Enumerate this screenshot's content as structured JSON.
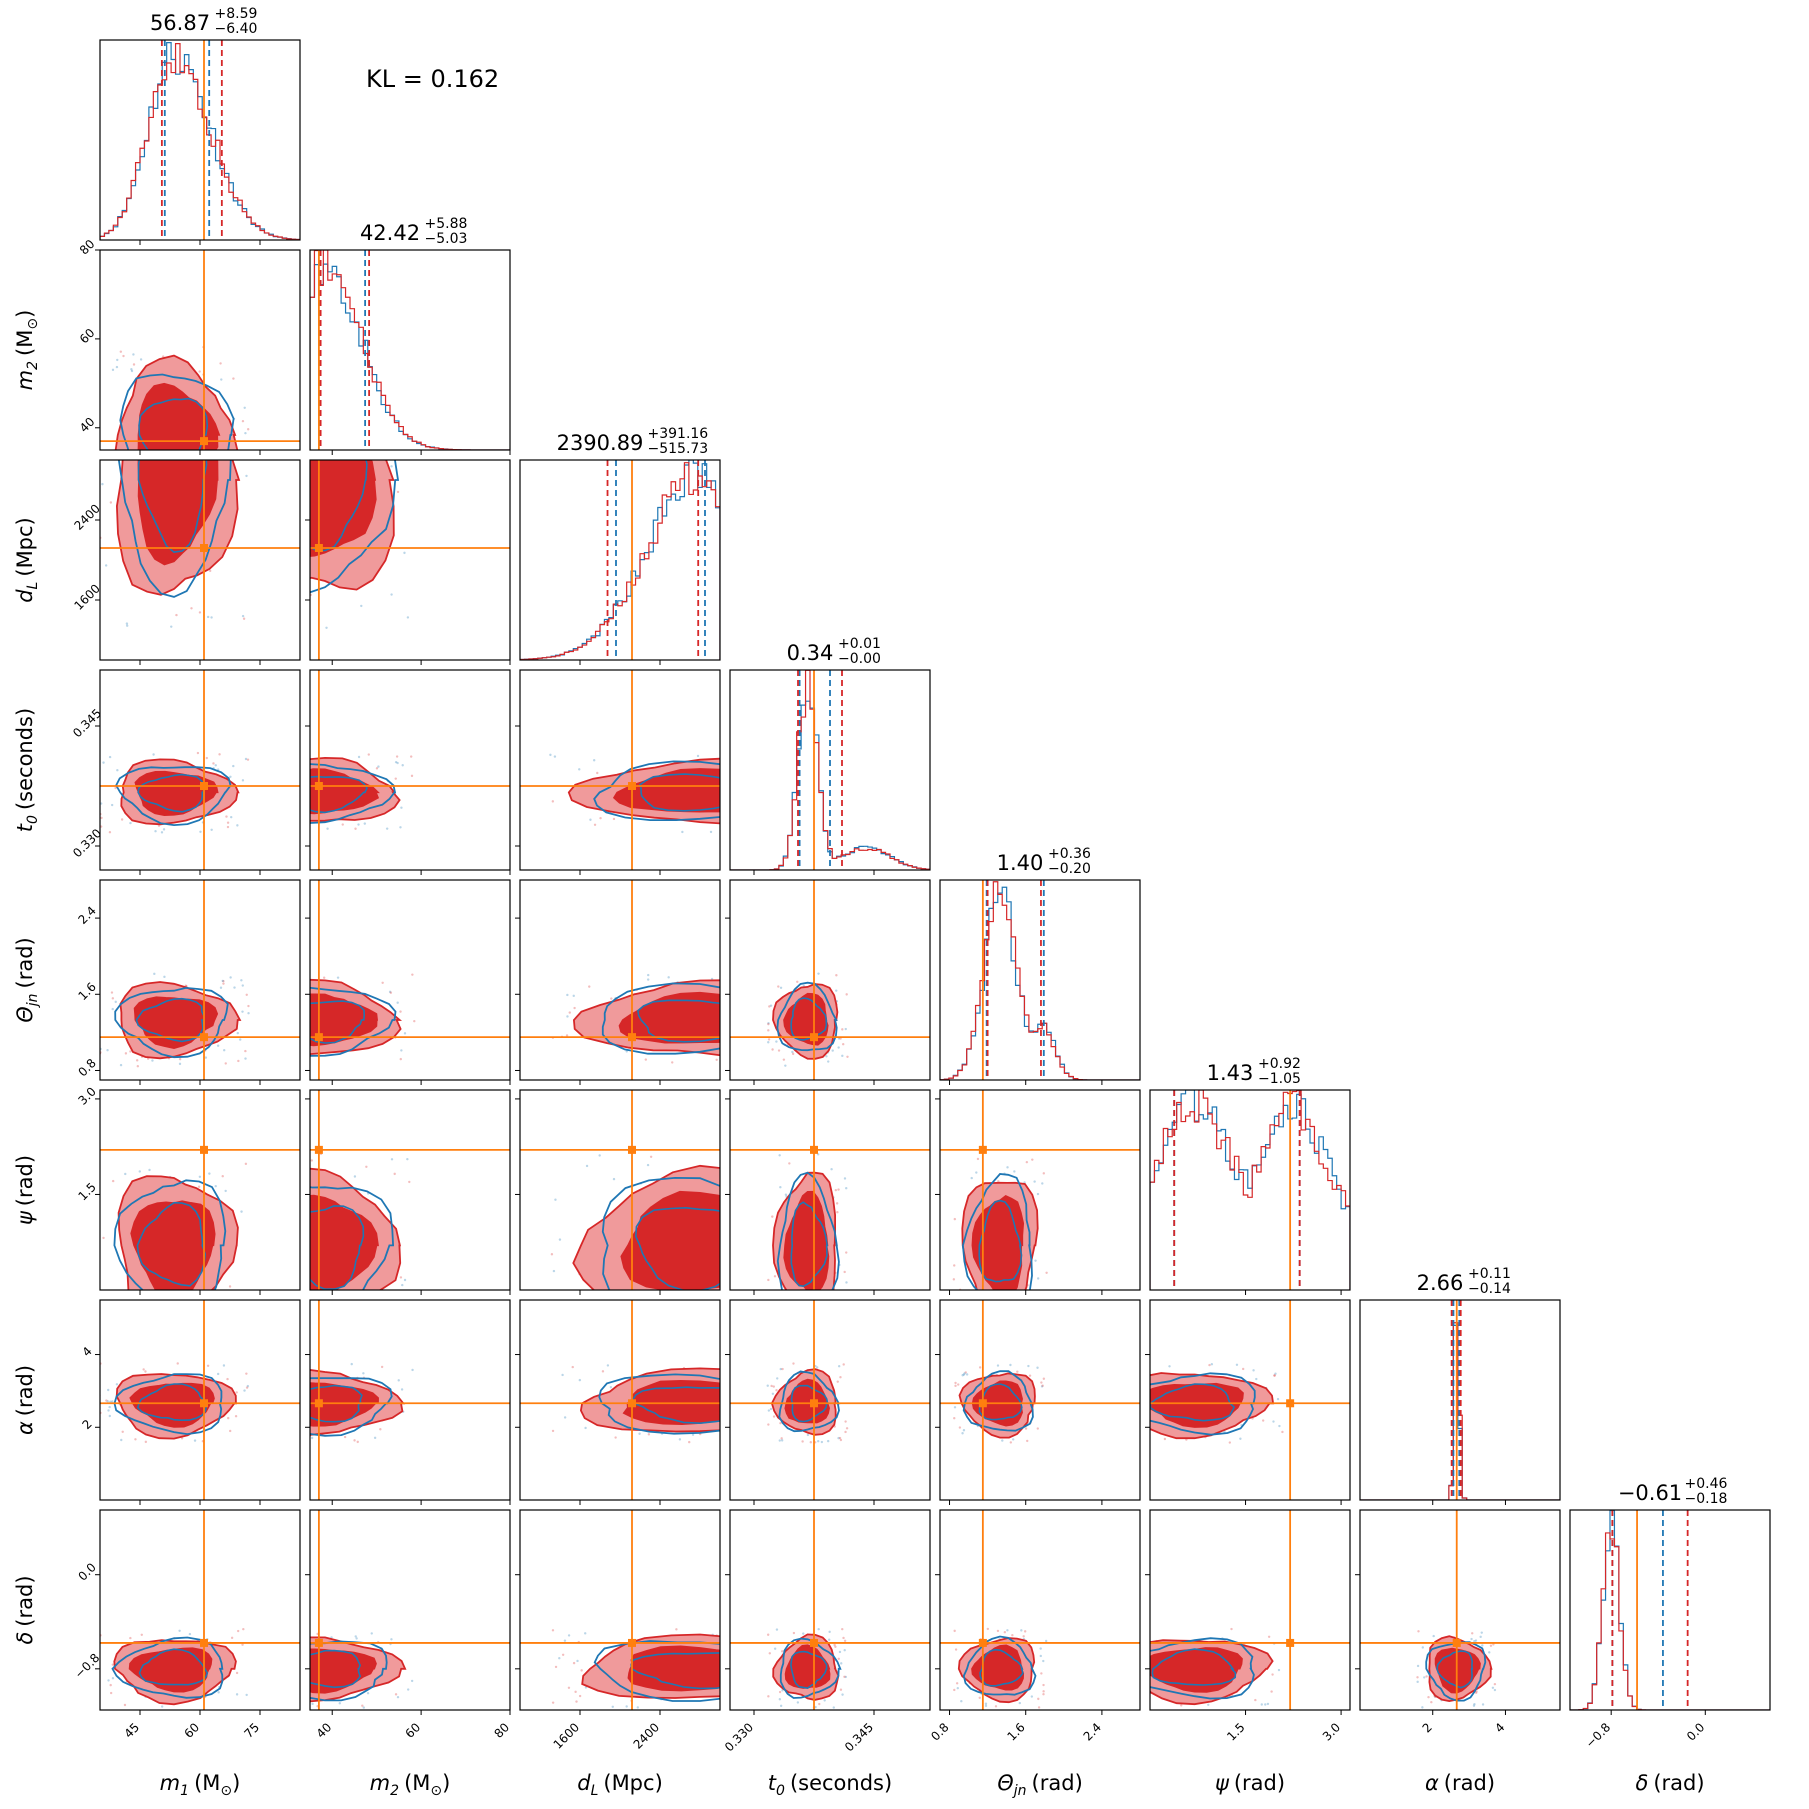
{
  "figure": {
    "kl_label": "KL = 0.162"
  },
  "colors": {
    "blue": "#1f77b4",
    "red": "#d62728",
    "truth": "#ff7f0e",
    "light_red": "#f09a9b"
  },
  "chart_data": {
    "type": "corner",
    "params": [
      {
        "base": "m",
        "sub": "1",
        "unit": "M",
        "unit_sub": "⊙",
        "range": [
          35,
          85
        ],
        "ticks": [
          45,
          60,
          75
        ],
        "tick_labels": [
          "45",
          "60",
          "75"
        ],
        "truth": 61,
        "median_red": 56.87,
        "q_red": [
          50.47,
          65.46
        ],
        "q_blue": [
          51.2,
          62.3
        ],
        "title_main": "56.87",
        "title_plus": "+8.59",
        "title_minus": "−6.40",
        "hist_peak": 53.5,
        "hist_width": 6.5,
        "hist_skew": 1.4
      },
      {
        "base": "m",
        "sub": "2",
        "unit": "M",
        "unit_sub": "⊙",
        "range": [
          35,
          80
        ],
        "ticks": [
          40,
          60,
          80
        ],
        "tick_labels": [
          "40",
          "60",
          "80"
        ],
        "truth": 37,
        "median_red": 42.42,
        "q_red": [
          37.39,
          48.3
        ],
        "q_blue": [
          37.2,
          47.4
        ],
        "title_main": "42.42",
        "title_plus": "+5.88",
        "title_minus": "−5.03",
        "hist_peak": 38,
        "hist_width": 7,
        "hist_skew": 1.2
      },
      {
        "base": "d",
        "sub": "L",
        "unit": "Mpc",
        "unit_sub": "",
        "range": [
          1000,
          3000
        ],
        "ticks": [
          1600,
          2400
        ],
        "tick_labels": [
          "1600",
          "2400"
        ],
        "truth": 2120,
        "median_red": 2390.89,
        "q_red": [
          1875.16,
          2782.05
        ],
        "q_blue": [
          1960,
          2850
        ],
        "title_main": "2390.89",
        "title_plus": "+391.16",
        "title_minus": "−515.73",
        "hist_peak": 2800,
        "hist_width": 520,
        "hist_skew": 0.55
      },
      {
        "base": "t",
        "sub": "0",
        "unit": "seconds",
        "unit_sub": "",
        "range": [
          0.327,
          0.352
        ],
        "ticks": [
          0.33,
          0.345
        ],
        "tick_labels": [
          "0.330",
          "0.345"
        ],
        "truth": 0.3375,
        "median_red": 0.34,
        "q_red": [
          0.3355,
          0.341
        ],
        "q_blue": [
          0.3357,
          0.3395
        ],
        "title_main": "0.34",
        "title_plus": "+0.01",
        "title_minus": "−0.00",
        "hist_peak": 0.3367,
        "hist_width": 0.0012,
        "hist_skew": 1.0
      },
      {
        "base": "Θ",
        "sub": "jn",
        "unit": "rad",
        "unit_sub": "",
        "range": [
          0.7,
          2.8
        ],
        "ticks": [
          0.8,
          1.6,
          2.4
        ],
        "tick_labels": [
          "0.8",
          "1.6",
          "2.4"
        ],
        "truth": 1.15,
        "median_red": 1.4,
        "q_red": [
          1.2,
          1.76
        ],
        "q_blue": [
          1.19,
          1.79
        ],
        "title_main": "1.40",
        "title_plus": "+0.36",
        "title_minus": "−0.20",
        "hist_peak": 1.33,
        "hist_width": 0.17,
        "hist_skew": 1.0
      },
      {
        "base": "ψ",
        "sub": "",
        "unit": "rad",
        "unit_sub": "",
        "range": [
          0,
          3.14
        ],
        "ticks": [
          1.5,
          3.0
        ],
        "tick_labels": [
          "1.5",
          "3.0"
        ],
        "truth": 2.2,
        "median_red": 1.43,
        "q_red": [
          0.38,
          2.35
        ],
        "q_blue": [
          0.38,
          2.35
        ],
        "title_main": "1.43",
        "title_plus": "+0.92",
        "title_minus": "−1.05",
        "hist_peak": 0.7,
        "hist_width": 0.5,
        "hist_skew": 1.0
      },
      {
        "base": "α",
        "sub": "",
        "unit": "rad",
        "unit_sub": "",
        "range": [
          0,
          5.5
        ],
        "ticks": [
          2,
          4
        ],
        "tick_labels": [
          "2",
          "4"
        ],
        "truth": 2.66,
        "median_red": 2.66,
        "q_red": [
          2.52,
          2.77
        ],
        "q_blue": [
          2.57,
          2.73
        ],
        "title_main": "2.66",
        "title_plus": "+0.11",
        "title_minus": "−0.14",
        "hist_peak": 2.66,
        "hist_width": 0.07,
        "hist_skew": 1.0
      },
      {
        "base": "δ",
        "sub": "",
        "unit": "rad",
        "unit_sub": "",
        "range": [
          -1.15,
          0.55
        ],
        "ticks": [
          -0.8,
          0.0
        ],
        "tick_labels": [
          "−0.8",
          "0.0"
        ],
        "truth": -0.58,
        "median_red": -0.61,
        "q_red": [
          -0.79,
          -0.15
        ],
        "q_blue": [
          -0.79,
          -0.36
        ],
        "title_main": "−0.61",
        "title_plus": "+0.46",
        "title_minus": "−0.18",
        "hist_peak": -0.8,
        "hist_width": 0.07,
        "hist_skew": 1.0
      }
    ]
  }
}
